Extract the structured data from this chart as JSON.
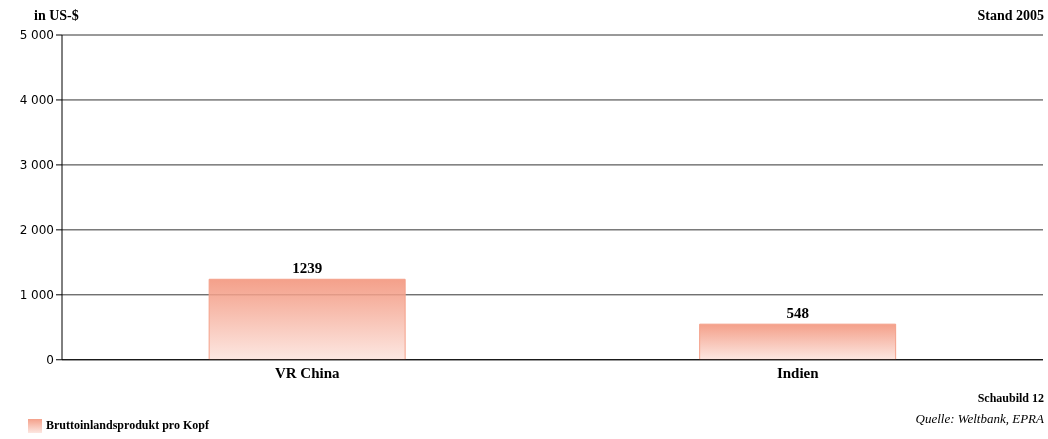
{
  "chart_data": {
    "type": "bar",
    "ylabel": "in US-$",
    "categories": [
      "VR China",
      "Indien"
    ],
    "series": [
      {
        "name": "Bruttoinlandsprodukt pro Kopf",
        "color": "#f4a08a",
        "values": [
          1239,
          548
        ]
      }
    ],
    "ylim": [
      0,
      5000
    ],
    "yticks": [
      0,
      {
        "value": 1000,
        "label": "1 000"
      },
      {
        "value": 2000,
        "label": "2 000"
      },
      {
        "value": 3000,
        "label": "3 000"
      },
      {
        "value": 4000,
        "label": "4 000"
      },
      {
        "value": 5000,
        "label": "5 000"
      }
    ],
    "grid": "y",
    "data_labels": true,
    "legend": "bottom left",
    "annotations": [
      "Stand 2005",
      "Schaubild 12",
      "Quelle: Weltbank, EPRA"
    ]
  }
}
